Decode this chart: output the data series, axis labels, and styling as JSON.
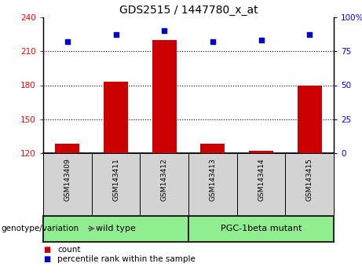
{
  "title": "GDS2515 / 1447780_x_at",
  "samples": [
    "GSM143409",
    "GSM143411",
    "GSM143412",
    "GSM143413",
    "GSM143414",
    "GSM143415"
  ],
  "counts": [
    128,
    183,
    220,
    128,
    122,
    180
  ],
  "percentiles": [
    82,
    87,
    90,
    82,
    83,
    87
  ],
  "ylim_left": [
    120,
    240
  ],
  "ylim_right": [
    0,
    100
  ],
  "yticks_left": [
    120,
    150,
    180,
    210,
    240
  ],
  "yticks_right": [
    0,
    25,
    50,
    75,
    100
  ],
  "ytick_labels_right": [
    "0",
    "25",
    "50",
    "75",
    "100%"
  ],
  "bar_color": "#cc0000",
  "dot_color": "#0000cc",
  "groups": [
    {
      "label": "wild type",
      "indices": [
        0,
        1,
        2
      ],
      "color": "#90ee90"
    },
    {
      "label": "PGC-1beta mutant",
      "indices": [
        3,
        4,
        5
      ],
      "color": "#90ee90"
    }
  ],
  "group_label": "genotype/variation",
  "legend_count": "count",
  "legend_percentile": "percentile rank within the sample",
  "bg_plot": "#ffffff",
  "bg_sample_label": "#d3d3d3",
  "bar_width": 0.5,
  "gridlines_at": [
    150,
    180,
    210
  ],
  "dot_size": 25
}
